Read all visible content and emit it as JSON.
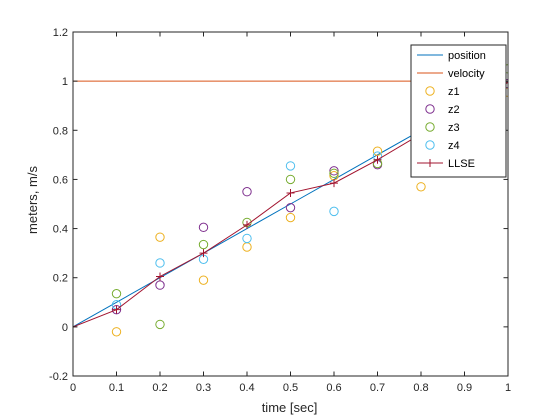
{
  "chart_data": {
    "type": "line",
    "title": "",
    "xlabel": "time [sec]",
    "ylabel": "meters, m/s",
    "xlim": [
      0,
      1
    ],
    "ylim": [
      -0.2,
      1.2
    ],
    "xticks": [
      "0",
      "0.1",
      "0.2",
      "0.3",
      "0.4",
      "0.5",
      "0.6",
      "0.7",
      "0.8",
      "0.9",
      "1"
    ],
    "yticks": [
      "-0.2",
      "0",
      "0.2",
      "0.4",
      "0.6",
      "0.8",
      "1",
      "1.2"
    ],
    "grid": false,
    "legend_position": "top-right",
    "series": [
      {
        "name": "position",
        "style": "line",
        "color": "#0072BD",
        "x": [
          0,
          0.1,
          0.2,
          0.3,
          0.4,
          0.5,
          0.6,
          0.7,
          0.8,
          0.9,
          1
        ],
        "y": [
          0,
          0.1,
          0.2,
          0.3,
          0.4,
          0.5,
          0.6,
          0.7,
          0.8,
          0.9,
          1
        ]
      },
      {
        "name": "velocity",
        "style": "line",
        "color": "#D95319",
        "x": [
          0,
          1
        ],
        "y": [
          1,
          1
        ]
      },
      {
        "name": "z1",
        "style": "marker",
        "color": "#EDB120",
        "x": [
          0.1,
          0.2,
          0.3,
          0.4,
          0.5,
          0.6,
          0.7,
          0.8,
          1
        ],
        "y": [
          -0.02,
          0.365,
          0.19,
          0.325,
          0.445,
          0.615,
          0.715,
          0.57,
          0.955
        ]
      },
      {
        "name": "z2",
        "style": "marker",
        "color": "#7E2F8E",
        "x": [
          0.1,
          0.2,
          0.3,
          0.4,
          0.5,
          0.6,
          0.7,
          1
        ],
        "y": [
          0.07,
          0.17,
          0.405,
          0.55,
          0.485,
          0.635,
          0.66,
          0.99
        ]
      },
      {
        "name": "z3",
        "style": "marker",
        "color": "#77AC30",
        "x": [
          0.1,
          0.2,
          0.3,
          0.4,
          0.5,
          0.6,
          0.7,
          1
        ],
        "y": [
          0.135,
          0.01,
          0.335,
          0.425,
          0.6,
          0.625,
          0.665,
          1.05
        ]
      },
      {
        "name": "z4",
        "style": "marker",
        "color": "#4DBEEE",
        "x": [
          0.1,
          0.2,
          0.3,
          0.4,
          0.5,
          0.6,
          0.7
        ],
        "y": [
          0.09,
          0.26,
          0.275,
          0.36,
          0.655,
          0.47,
          0.695
        ]
      },
      {
        "name": "LLSE",
        "style": "line-plus",
        "color": "#A2142F",
        "x": [
          0,
          0.1,
          0.2,
          0.3,
          0.4,
          0.5,
          0.6,
          0.7,
          1
        ],
        "y": [
          0,
          0.07,
          0.205,
          0.3,
          0.415,
          0.545,
          0.585,
          0.68,
          0.995
        ]
      }
    ]
  }
}
